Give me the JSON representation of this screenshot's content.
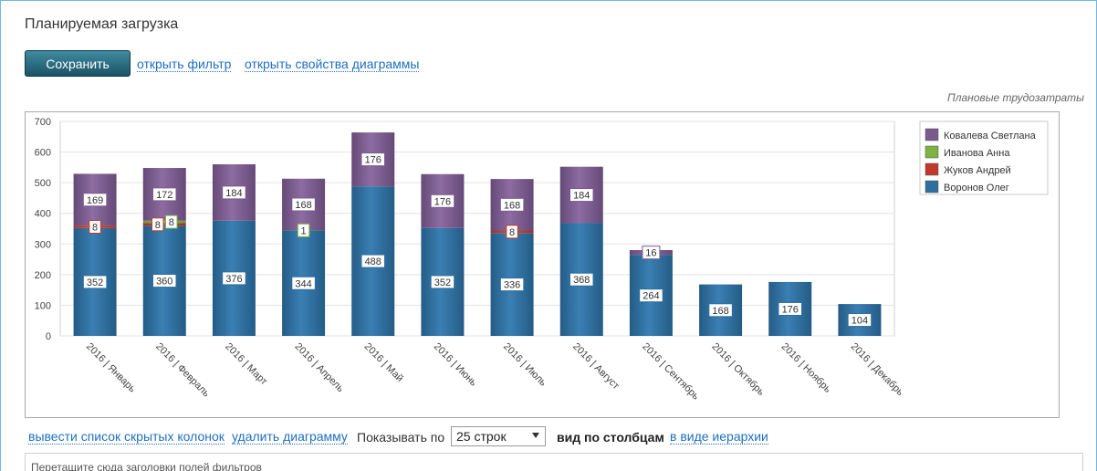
{
  "header": {
    "title": "Планируемая загрузка"
  },
  "toolbar": {
    "save_label": "Сохранить",
    "open_filter": "открыть фильтр",
    "open_props": "открыть свойства диаграммы"
  },
  "chart_caption": "Плановые трудозатраты",
  "footer": {
    "hidden_columns": "вывести список скрытых колонок",
    "delete_chart": "удалить диаграмму",
    "show_by": "Показывать по",
    "rows_value": "25 строк",
    "view_columns": "вид по столбцам",
    "view_hierarchy": "в виде иерархии",
    "drop_hint": "Перетащите сюда заголовки полей фильтров"
  },
  "colors": {
    "voronov": "#2f6f9f",
    "zhukov": "#c0392b",
    "ivanova": "#7cb342",
    "kovaleva": "#7b5a8e"
  },
  "chart_data": {
    "type": "bar",
    "stacked": true,
    "categories": [
      "2016 | Январь",
      "2016 | Февраль",
      "2016 | Март",
      "2016 | Апрель",
      "2016 | Май",
      "2016 | Июнь",
      "2016 | Июль",
      "2016 | Август",
      "2016 | Сентябрь",
      "2016 | Октябрь",
      "2016 | Ноябрь",
      "2016 | Декабрь"
    ],
    "series": [
      {
        "name": "Воронов Олег",
        "values": [
          352,
          360,
          376,
          344,
          488,
          352,
          336,
          368,
          264,
          168,
          176,
          104
        ]
      },
      {
        "name": "Жуков Андрей",
        "values": [
          8,
          8,
          0,
          0,
          0,
          0,
          8,
          0,
          0,
          0,
          0,
          0
        ]
      },
      {
        "name": "Иванова Анна",
        "values": [
          0,
          8,
          0,
          1,
          0,
          0,
          0,
          0,
          0,
          0,
          0,
          0
        ]
      },
      {
        "name": "Ковалева Светлана",
        "values": [
          169,
          172,
          184,
          168,
          176,
          176,
          168,
          184,
          16,
          0,
          0,
          0
        ]
      }
    ],
    "legend_order": [
      "Ковалева Светлана",
      "Иванова Анна",
      "Жуков Андрей",
      "Воронов Олег"
    ],
    "yticks": [
      "0",
      "100",
      "200",
      "300",
      "400",
      "500",
      "600",
      "700"
    ],
    "ylim": [
      0,
      700
    ],
    "grid": true,
    "legend_position": "top-right"
  }
}
